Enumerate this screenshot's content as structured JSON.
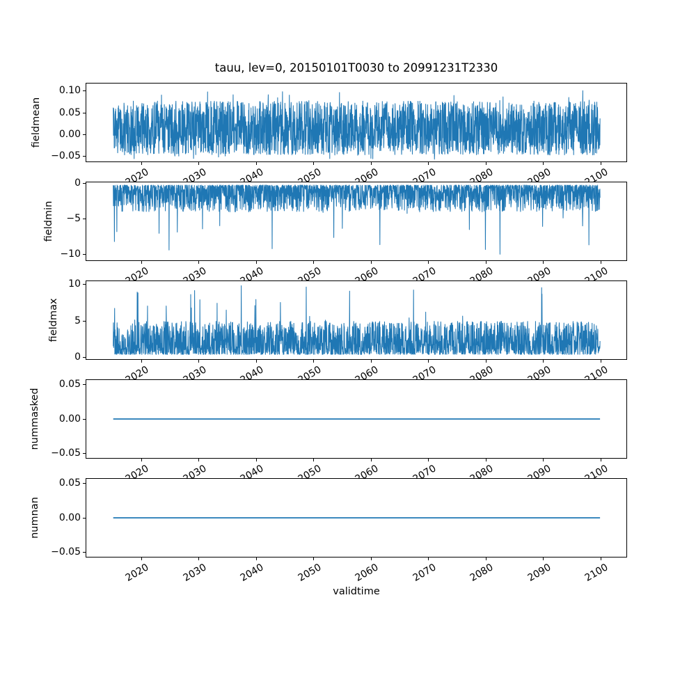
{
  "figure": {
    "title": "tauu, lev=0, 20150101T0030 to 20991231T2330",
    "xlabel": "validtime",
    "line_color": "#1f77b4",
    "background": "#ffffff",
    "text_color": "#000000",
    "n_subplots": 5
  },
  "x_axis": {
    "label": "validtime",
    "tick_values": [
      2020,
      2030,
      2040,
      2050,
      2060,
      2070,
      2080,
      2090,
      2100
    ],
    "tick_labels": [
      "2020",
      "2030",
      "2040",
      "2050",
      "2060",
      "2070",
      "2080",
      "2090",
      "2100"
    ],
    "lim": [
      2010.3,
      2104.6
    ],
    "tick_label_rotation_deg": 30,
    "data_start": 2015.0,
    "data_end": 2100.0
  },
  "chart_data": [
    {
      "type": "line",
      "ylabel": "fieldmean",
      "ylim": [
        -0.063,
        0.119
      ],
      "yticks": [
        0.1,
        0.05,
        0.0,
        -0.05
      ],
      "ytick_labels": [
        "0.10",
        "0.05",
        "0.00",
        "−0.05"
      ],
      "x_range": [
        2015.0,
        2100.0
      ],
      "series": {
        "name": "fieldmean",
        "kind": "band",
        "n": 2400,
        "seed": 11,
        "core_lo": -0.03,
        "core_hi": 0.058,
        "ex_lo": -0.048,
        "ex_hi": 0.078,
        "p_ex": 0.3,
        "spike_lo": -0.058,
        "spike_hi": 0.103,
        "p_spike": 0.012
      },
      "summary": "Dense high-frequency noise oscillating roughly between -0.05 and 0.08 around a mean near 0.01, with rare peaks up to ~0.10 and dips to ~-0.06, spanning 2015-2100."
    },
    {
      "type": "line",
      "ylabel": "fieldmin",
      "ylim": [
        -10.9,
        0.2
      ],
      "yticks": [
        0,
        -5,
        -10
      ],
      "ytick_labels": [
        "0",
        "−5",
        "−10"
      ],
      "x_range": [
        2015.0,
        2100.0
      ],
      "series": {
        "name": "fieldmin",
        "kind": "spiky_down",
        "n": 2400,
        "seed": 22,
        "top": -0.2,
        "scale": 3.8,
        "expo": 2.2,
        "spike_to": -10.4,
        "p_spike": 0.01
      },
      "summary": "Downward-spiking noise: dense band from ~-0.2 to ~-3, frequent spikes to -4..-6, occasional extremes reaching about -10.4, spanning 2015-2100."
    },
    {
      "type": "line",
      "ylabel": "fieldmax",
      "ylim": [
        -0.3,
        10.5
      ],
      "yticks": [
        10,
        5,
        0
      ],
      "ytick_labels": [
        "10",
        "5",
        "0"
      ],
      "x_range": [
        2015.0,
        2100.0
      ],
      "series": {
        "name": "fieldmax",
        "kind": "spiky_up",
        "n": 2400,
        "seed": 33,
        "bottom": 0.35,
        "scale": 4.6,
        "expo": 1.8,
        "spike_to": 10.0,
        "p_spike": 0.01
      },
      "summary": "Upward-spiking noise: dense band from ~0.4 to ~4.5, frequent spikes to 5-7, occasional extremes reaching about 10, spanning 2015-2100."
    },
    {
      "type": "line",
      "ylabel": "nummasked",
      "ylim": [
        -0.0575,
        0.0575
      ],
      "yticks": [
        0.05,
        0.0,
        -0.05
      ],
      "ytick_labels": [
        "0.05",
        "0.00",
        "−0.05"
      ],
      "x_range": [
        2015.0,
        2100.0
      ],
      "series": {
        "name": "nummasked",
        "kind": "constant",
        "value": 0.0
      },
      "summary": "Constant value 0 for the full period 2015-2100 (flat horizontal line)."
    },
    {
      "type": "line",
      "ylabel": "numnan",
      "ylim": [
        -0.0575,
        0.0575
      ],
      "yticks": [
        0.05,
        0.0,
        -0.05
      ],
      "ytick_labels": [
        "0.05",
        "0.00",
        "−0.05"
      ],
      "x_range": [
        2015.0,
        2100.0
      ],
      "series": {
        "name": "numnan",
        "kind": "constant",
        "value": 0.0
      },
      "summary": "Constant value 0 for the full period 2015-2100 (flat horizontal line)."
    }
  ],
  "layout_hints": {
    "grid": false,
    "legend": null,
    "shared_x": true,
    "x_tick_labels_clipped_between_subplots": true
  }
}
